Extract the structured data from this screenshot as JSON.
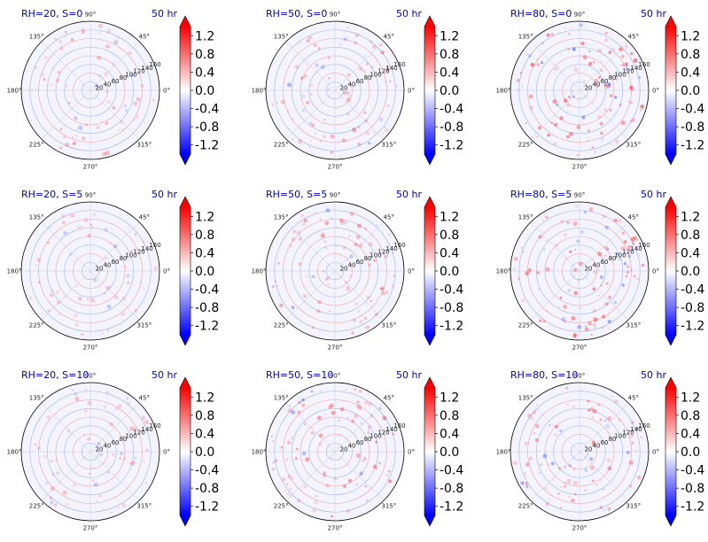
{
  "chart_data": {
    "type": "polar-heatmap-grid",
    "rows": 3,
    "cols": 3,
    "time_label": "50 hr",
    "angle_ticks": [
      "0°",
      "45°",
      "90°",
      "135°",
      "180°",
      "225°",
      "270°",
      "315°"
    ],
    "radial_ticks": [
      "20",
      "40",
      "60",
      "80",
      "100",
      "120",
      "140",
      "160"
    ],
    "radial_max": 160,
    "colorbar": {
      "cmap": "bwr",
      "vmin": -1.4,
      "vmax": 1.4,
      "ticks": [
        "1.2",
        "0.8",
        "0.4",
        "0.0",
        "-0.4",
        "-0.8",
        "-1.2"
      ],
      "tick_values": [
        1.2,
        0.8,
        0.4,
        0.0,
        -0.4,
        -0.8,
        -1.2
      ],
      "extend": "both"
    },
    "panels": [
      {
        "title": "RH=20, S=0",
        "time": "50 hr",
        "intensity": 0.25
      },
      {
        "title": "RH=50, S=0",
        "time": "50 hr",
        "intensity": 0.35
      },
      {
        "title": "RH=80, S=0",
        "time": "50 hr",
        "intensity": 0.6
      },
      {
        "title": "RH=20, S=5",
        "time": "50 hr",
        "intensity": 0.2
      },
      {
        "title": "RH=50, S=5",
        "time": "50 hr",
        "intensity": 0.35
      },
      {
        "title": "RH=80, S=5",
        "time": "50 hr",
        "intensity": 0.5
      },
      {
        "title": "RH=20, S=10",
        "time": "50 hr",
        "intensity": 0.2
      },
      {
        "title": "RH=50, S=10",
        "time": "50 hr",
        "intensity": 0.45
      },
      {
        "title": "RH=80, S=10",
        "time": "50 hr",
        "intensity": 0.4
      }
    ],
    "colors": {
      "title": "#0000cc",
      "ring_warm": "#e8a0a0",
      "ring_cool": "#a0b0e8",
      "field_bg": "#f4f4ff"
    }
  }
}
